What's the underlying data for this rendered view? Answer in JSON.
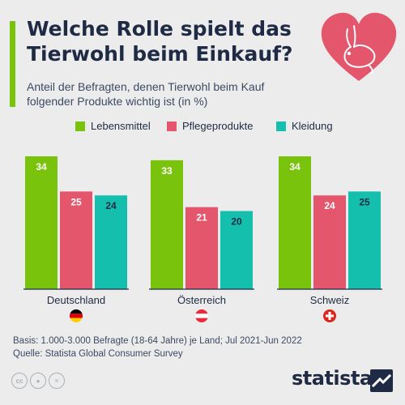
{
  "header": {
    "title": "Welche Rolle spielt das\nTierwohl beim Einkauf?",
    "subtitle": "Anteil der Befragten, denen Tierwohl beim Kauf\nfolgender Produkte wichtig ist (in %)",
    "illustration": "rabbit-in-heart-icon"
  },
  "colors": {
    "accent": "#7ac30d",
    "heart": "#e4566c",
    "text": "#1f2a44",
    "background": "#ececec"
  },
  "chart_data": {
    "type": "bar",
    "title": "Welche Rolle spielt das Tierwohl beim Einkauf?",
    "categories": [
      "Deutschland",
      "Österreich",
      "Schweiz"
    ],
    "series": [
      {
        "name": "Lebensmittel",
        "color": "#7ac30d",
        "values": [
          34,
          33,
          34
        ]
      },
      {
        "name": "Pflegeprodukte",
        "color": "#e4566c",
        "values": [
          25,
          21,
          24
        ]
      },
      {
        "name": "Kleidung",
        "color": "#14bfae",
        "values": [
          24,
          20,
          25
        ]
      }
    ],
    "ylim": [
      0,
      34
    ],
    "grid": false,
    "legend": "top",
    "data_labels": true,
    "flags": [
      "flag-germany-icon",
      "flag-austria-icon",
      "flag-switzerland-icon"
    ]
  },
  "footer": {
    "basis": "Basis: 1.000-3.000 Befragte (18-64 Jahre) je Land; Jul 2021-Jun 2022",
    "source": "Quelle: Statista Global Consumer Survey",
    "license_icons": [
      "cc-icon",
      "by-icon",
      "nd-icon"
    ],
    "brand": "statista"
  }
}
